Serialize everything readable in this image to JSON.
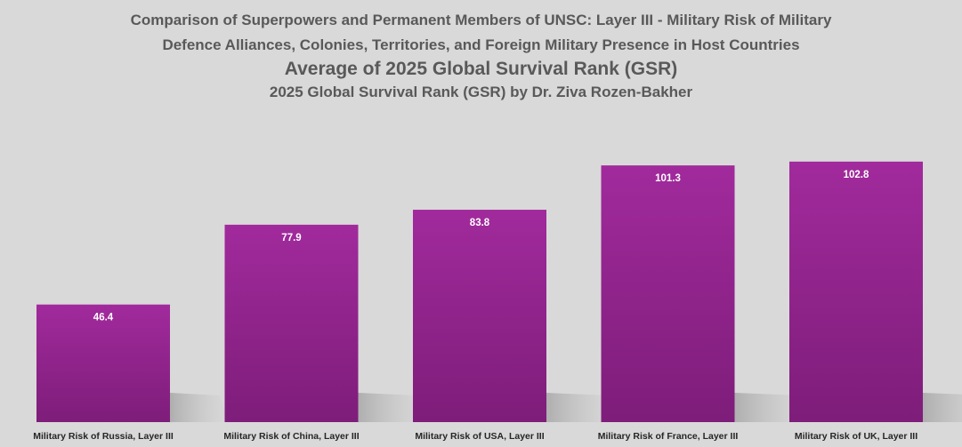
{
  "title": {
    "line1": "Comparison of Superpowers and Permanent Members of UNSC: Layer III - Military Risk of Military",
    "line2": "Defence Alliances, Colonies, Territories, and Foreign Military Presence in Host Countries",
    "main": "Average of 2025 Global Survival Rank (GSR)",
    "subtitle": "2025 Global Survival Rank (GSR) by Dr. Ziva Rozen-Bakher"
  },
  "colors": {
    "background": "#d9d9d9",
    "bar_top": "#a12a9c",
    "bar_bottom": "#7e1d7a",
    "title_text": "#595959",
    "axis_text": "#262626",
    "value_text": "#ffffff"
  },
  "chart_data": {
    "type": "bar",
    "categories": [
      "Military Risk of Russia, Layer III",
      "Military Risk of China, Layer III",
      "Military Risk of USA, Layer III",
      "Military Risk of France, Layer III",
      "Military Risk of UK, Layer III"
    ],
    "values": [
      46.4,
      77.9,
      83.8,
      101.3,
      102.8
    ],
    "value_labels": [
      "46.4",
      "77.9",
      "83.8",
      "101.3",
      "102.8"
    ],
    "ylim": [
      0,
      128
    ],
    "grid": false,
    "legend": "none"
  }
}
